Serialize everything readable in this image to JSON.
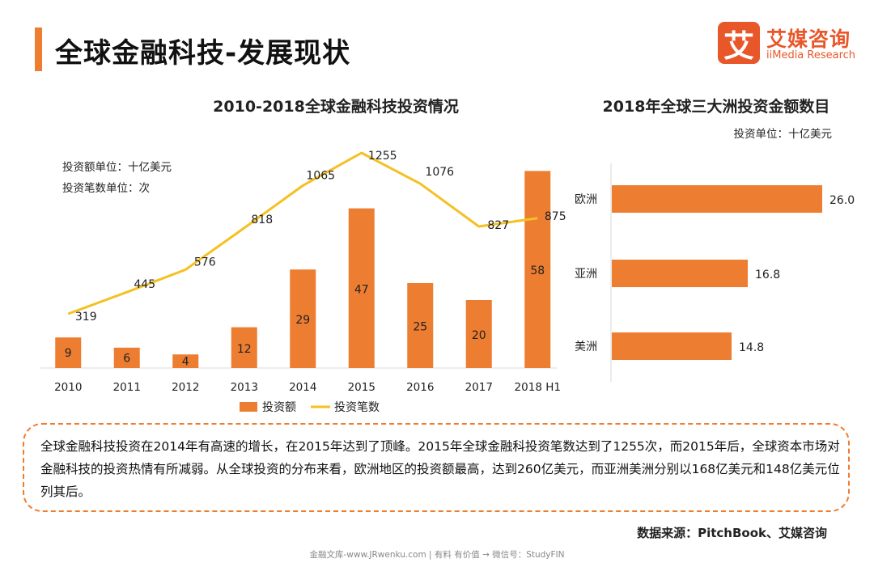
{
  "header": {
    "title": "全球金融科技-发展现状",
    "logo_mark": "艾",
    "logo_cn": "艾媒咨询",
    "logo_en": "iiMedia Research"
  },
  "main_chart": {
    "title": "2010-2018全球金融科技投资情况",
    "unit_amount": "投资额单位：十亿美元",
    "unit_count": "投资笔数单位：次",
    "legend": [
      "投资额",
      "投资笔数"
    ]
  },
  "side_chart": {
    "title": "2018年全球三大洲投资金额数目",
    "unit": "投资单位：十亿美元"
  },
  "colors": {
    "accent": "#ED7D31",
    "line": "#F5C022",
    "axis": "#D9D9D9"
  },
  "chart_data": [
    {
      "type": "bar+line",
      "title": "2010-2018全球金融科技投资情况",
      "categories": [
        "2010",
        "2011",
        "2012",
        "2013",
        "2014",
        "2015",
        "2016",
        "2017",
        "2018 H1"
      ],
      "series": [
        {
          "name": "投资额",
          "type": "bar",
          "values": [
            9,
            6,
            4,
            12,
            29,
            47,
            25,
            20,
            58
          ]
        },
        {
          "name": "投资笔数",
          "type": "line",
          "values": [
            319,
            445,
            576,
            818,
            1065,
            1255,
            1076,
            827,
            875
          ]
        }
      ],
      "legend": "bottom"
    },
    {
      "type": "bar",
      "orientation": "horizontal",
      "title": "2018年全球三大洲投资金额数目",
      "categories": [
        "欧洲",
        "亚洲",
        "美洲"
      ],
      "values": [
        26.0,
        16.8,
        14.8
      ],
      "value_labels": [
        "26.0",
        "16.8",
        "14.8"
      ]
    }
  ],
  "summary": "全球金融科技投资在2014年有高速的增长，在2015年达到了顶峰。2015年全球金融科投资笔数达到了1255次，而2015年后，全球资本市场对金融科技的投资热情有所减弱。从全球投资的分布来看，欧洲地区的投资额最高，达到260亿美元，而亚洲美洲分别以168亿美元和148亿美元位列其后。",
  "source": "数据来源：PitchBook、艾媒咨询",
  "footer": "金融文库-www.JRwenku.com | 有料 有价值 → 微信号：StudyFIN"
}
